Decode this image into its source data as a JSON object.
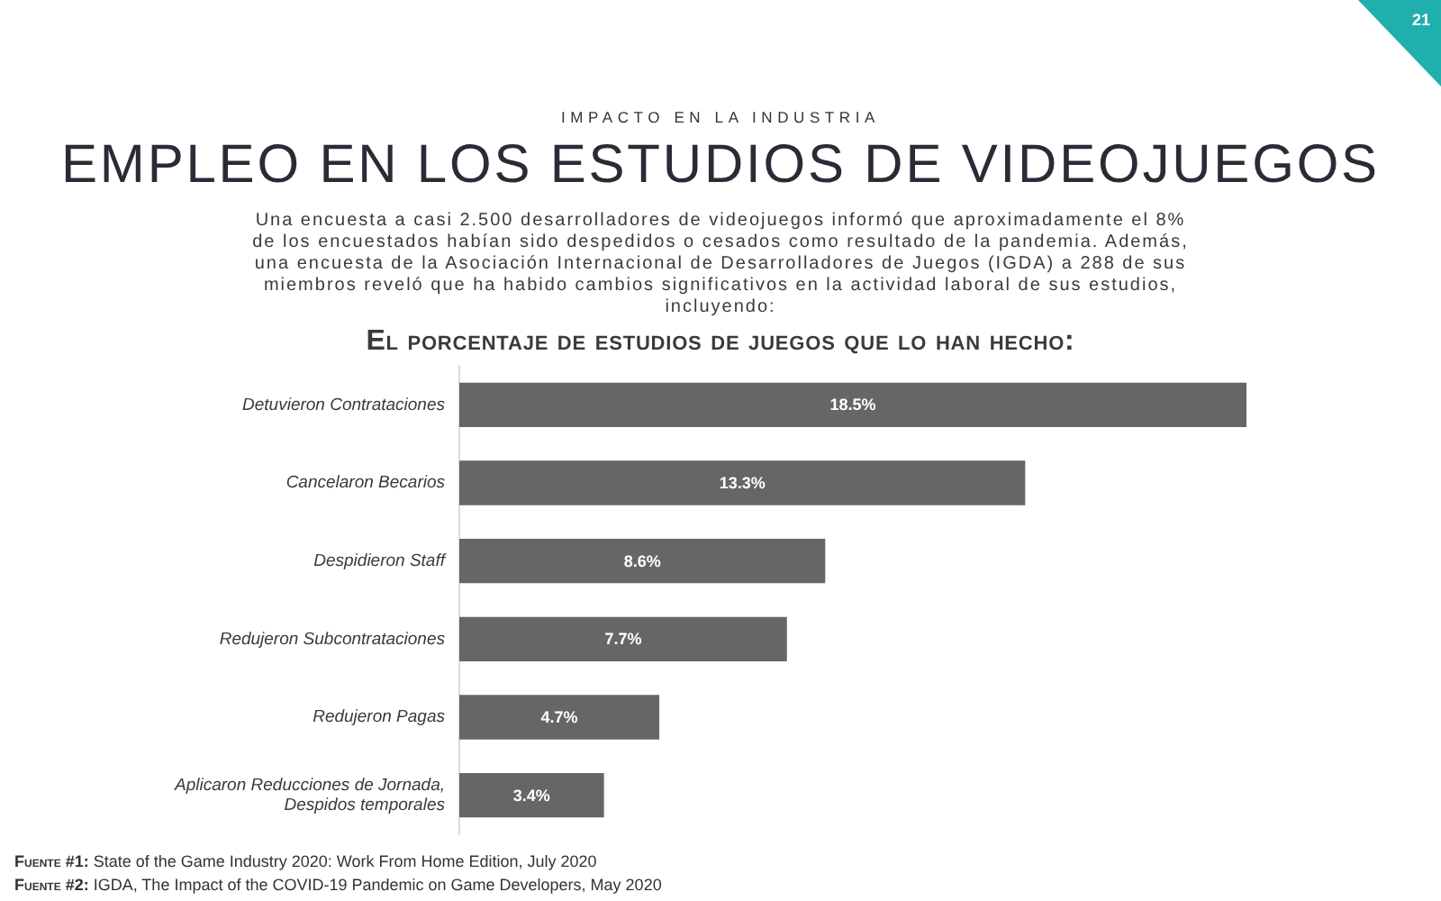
{
  "chart_data": {
    "type": "bar",
    "orientation": "horizontal",
    "title": "EMPLEO EN LOS ESTUDIOS DE VIDEOJUEGOS",
    "subtitle": "El porcentaje de estudios de juegos que lo han hecho:",
    "categories": [
      "Detuvieron Contrataciones",
      "Cancelaron Becarios",
      "Despidieron Staff",
      "Redujeron Subcontrataciones",
      "Redujeron Pagas",
      "Aplicaron Reducciones de Jornada, Despidos temporales"
    ],
    "values": [
      18.5,
      13.3,
      8.6,
      7.7,
      4.7,
      3.4
    ],
    "value_labels": [
      "18.5%",
      "13.3%",
      "8.6%",
      "7.7%",
      "4.7%",
      "3.4%"
    ],
    "color": "#666666",
    "tick_labels": "y",
    "annotations": [
      "IMPACTO EN LA INDUSTRIA",
      "Una encuesta a casi 2.500 desarrolladores de videojuegos informó que aproximadamente el 8% de los encuestados habían sido despedidos o cesados como resultado de la pandemia. Además, una encuesta de la Asociación Internacional de Desarrolladores de Juegos (IGDA) a 288 de sus miembros reveló que ha habido cambios significativos en la actividad laboral de sus estudios, incluyendo:",
      "Fuente #1: State of the Game Industry 2020: Work From Home Edition, July 2020",
      "Fuente #2: IGDA, The Impact of the COVID-19 Pandemic on Game Developers, May 2020",
      "21"
    ]
  }
}
